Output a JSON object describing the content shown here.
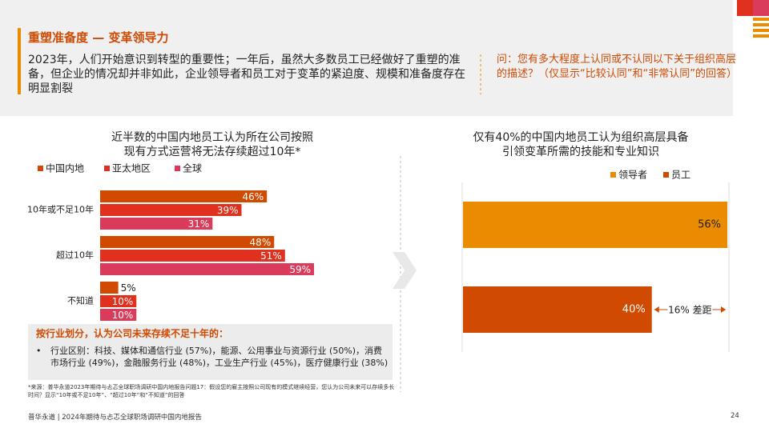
{
  "header": {
    "title": "重塑准备度 — 变革领导力",
    "body": "2023年，人们开始意识到转型的重要性；一年后，虽然大多数员工已经做好了重塑的准备，但企业的情况却并非如此，企业领导者和员工对于变革的紧迫度、规模和准备度存在明显割裂",
    "question": "问：您有多大程度上认同或不认同以下关于组织高层的描述？（仅显示“比较认同”和“非常认同”的回答）"
  },
  "chart_data": [
    {
      "type": "bar",
      "orientation": "horizontal",
      "title": [
        "近半数的中国内地员工认为所在公司按照",
        "现有方式运营将无法存续超过10年*"
      ],
      "categories": [
        "10年或不足10年",
        "超过10年",
        "不知道"
      ],
      "series": [
        {
          "name": "中国内地",
          "color": "#d04a02",
          "values": [
            46,
            48,
            5
          ],
          "value_labels": [
            "46%",
            "48%",
            "5%"
          ]
        },
        {
          "name": "亚太地区",
          "color": "#e0301e",
          "values": [
            39,
            51,
            10
          ],
          "value_labels": [
            "39%",
            "51%",
            "10%"
          ]
        },
        {
          "name": "全球",
          "color": "#db3b5b",
          "values": [
            31,
            59,
            10
          ],
          "value_labels": [
            "31%",
            "59%",
            "10%"
          ]
        }
      ]
    },
    {
      "type": "bar",
      "orientation": "horizontal",
      "title": [
        "仅有40%的中国内地员工认为组织高层具备",
        "引领变革所需的技能和专业知识"
      ],
      "series": [
        {
          "name": "领导者",
          "color": "#eb8c00",
          "values": [
            56
          ],
          "value_labels": [
            "56%"
          ]
        },
        {
          "name": "员工",
          "color": "#d04a02",
          "values": [
            40
          ],
          "value_labels": [
            "40%"
          ]
        }
      ],
      "annotations": [
        "16% 差距"
      ]
    }
  ],
  "note": {
    "title": "按行业划分，认为公司未来存续不足十年的：",
    "items": [
      "行业区别：科技、媒体和通信行业 (57%)，能源、公用事业与资源行业 (50%)，消费市场行业 (49%)，金融服务行业 (48%)，工业生产行业 (45%)，医疗健康行业 (38%)"
    ]
  },
  "footnote": "*来源：普华永道2023年期待与忐忑全球职场调研中国内地报告问题17：假设您的雇主按照公司现有的模式继续经营，您认为公司未来可以存续多长时间？显示“10年或不足10年”、“超过10年”和“不知道”的回答",
  "footer": {
    "text": "普华永道 | 2024年期待与忐忑全球职场调研中国内地报告",
    "page": "24"
  }
}
